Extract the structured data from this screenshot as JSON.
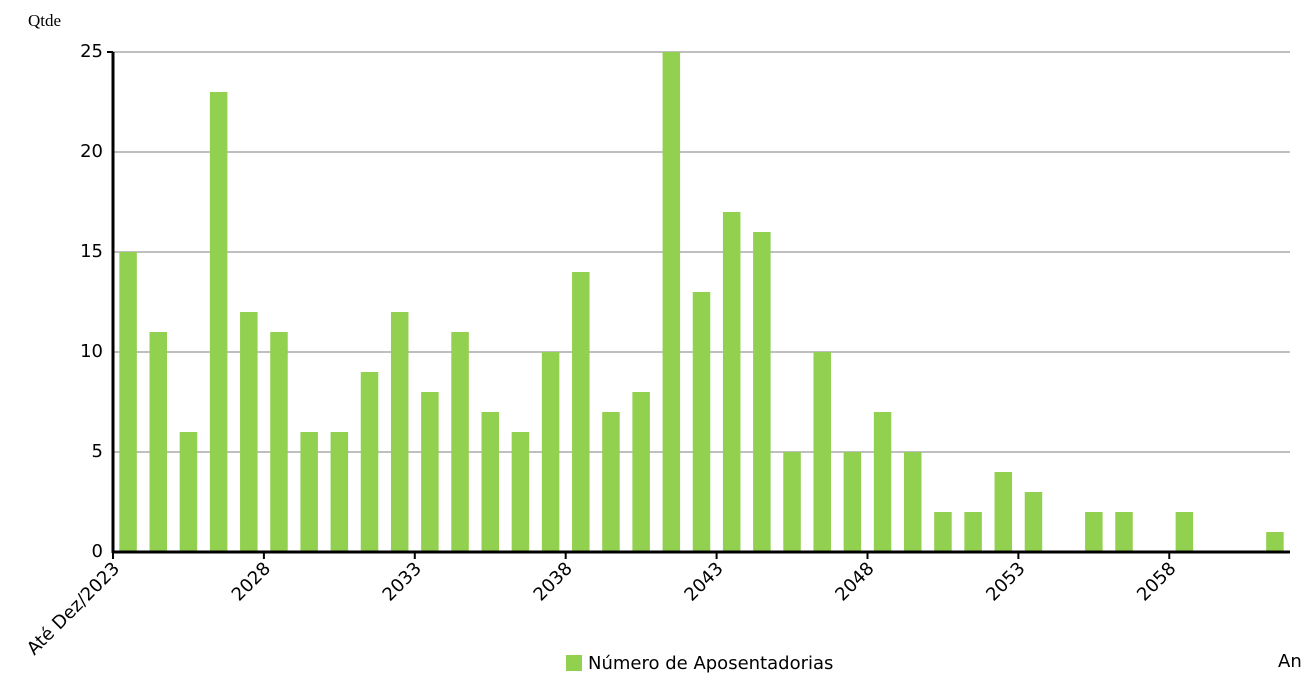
{
  "chart_data": {
    "type": "bar",
    "y_label": "Qtde",
    "x_label": "Ano",
    "categories": [
      "Até Dez/2023",
      null,
      null,
      null,
      null,
      "2028",
      null,
      null,
      null,
      null,
      "2033",
      null,
      null,
      null,
      null,
      "2038",
      null,
      null,
      null,
      null,
      "2043",
      null,
      null,
      null,
      null,
      "2048",
      null,
      null,
      null,
      null,
      "2053",
      null,
      null,
      null,
      null,
      "2058",
      null,
      null,
      null
    ],
    "series": [
      {
        "name": "Número de Aposentadorias",
        "color": "#92d050",
        "values": [
          15,
          11,
          6,
          23,
          12,
          11,
          6,
          6,
          9,
          12,
          8,
          11,
          7,
          6,
          10,
          14,
          7,
          8,
          25,
          13,
          17,
          16,
          5,
          10,
          5,
          7,
          5,
          2,
          2,
          4,
          3,
          0,
          2,
          2,
          0,
          2,
          0,
          0,
          1
        ]
      }
    ],
    "ylim": [
      0,
      25
    ],
    "yticks": [
      0,
      5,
      10,
      15,
      20,
      25
    ],
    "grid": true
  }
}
